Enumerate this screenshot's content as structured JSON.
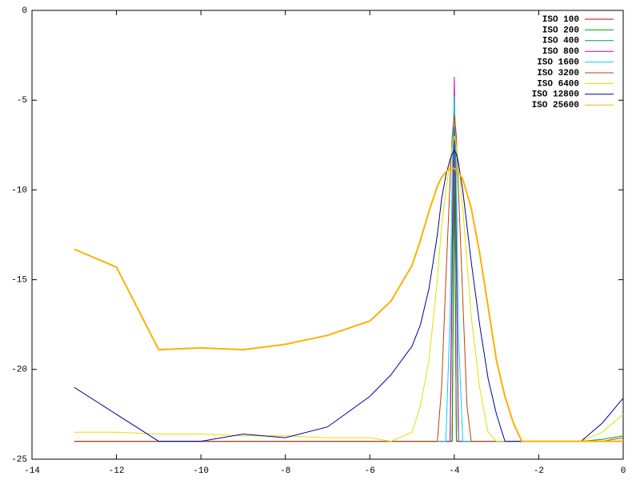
{
  "chart_data": {
    "type": "line",
    "x": [
      -13,
      -12,
      -11,
      -10,
      -9,
      -8,
      -7,
      -6,
      -5.5,
      -5,
      -4.8,
      -4.6,
      -4.4,
      -4.3,
      -4.2,
      -4.1,
      -4.05,
      -4,
      -3.95,
      -3.9,
      -3.8,
      -3.7,
      -3.6,
      -3.4,
      -3.2,
      -3,
      -2.8,
      -2.6,
      -2.4,
      -2,
      -1.5,
      -1,
      -0.5,
      0
    ],
    "xlim": [
      -14,
      0
    ],
    "ylim": [
      -25,
      0
    ],
    "xticks": [
      -14,
      -12,
      -10,
      -8,
      -6,
      -4,
      -2,
      0
    ],
    "yticks": [
      -25,
      -20,
      -15,
      -10,
      -5,
      0
    ],
    "legend": "top-right",
    "series": [
      {
        "name": "ISO 100",
        "color": "#cc0000",
        "values": [
          -24,
          -24,
          -24,
          -24,
          -24,
          -24,
          -24,
          -24,
          -24,
          -24,
          -24,
          -24,
          -24,
          -24,
          -24,
          -24,
          -24,
          -8.5,
          -24,
          -24,
          -24,
          -24,
          -24,
          -24,
          -24,
          -24,
          -24,
          -24,
          -24,
          -24,
          -24,
          -24,
          -24,
          -24
        ]
      },
      {
        "name": "ISO 200",
        "color": "#00a000",
        "values": [
          -24,
          -24,
          -24,
          -24,
          -24,
          -24,
          -24,
          -24,
          -24,
          -24,
          -24,
          -24,
          -24,
          -24,
          -24,
          -24,
          -24,
          -7,
          -24,
          -24,
          -24,
          -24,
          -24,
          -24,
          -24,
          -24,
          -24,
          -24,
          -24,
          -24,
          -24,
          -24,
          -23.9,
          -23.7
        ]
      },
      {
        "name": "ISO 400",
        "color": "#009080",
        "values": [
          -24,
          -24,
          -24,
          -24,
          -24,
          -24,
          -24,
          -24,
          -24,
          -24,
          -24,
          -24,
          -24,
          -24,
          -24,
          -24,
          -15,
          -6.5,
          -15,
          -24,
          -24,
          -24,
          -24,
          -24,
          -24,
          -24,
          -24,
          -24,
          -24,
          -24,
          -24,
          -24,
          -24,
          -24
        ]
      },
      {
        "name": "ISO 800",
        "color": "#c000c0",
        "values": [
          -24,
          -24,
          -24,
          -24,
          -24,
          -24,
          -24,
          -24,
          -24,
          -24,
          -24,
          -24,
          -24,
          -24,
          -24,
          -24,
          -13,
          -3.7,
          -13,
          -24,
          -24,
          -24,
          -24,
          -24,
          -24,
          -24,
          -24,
          -24,
          -24,
          -24,
          -24,
          -24,
          -24,
          -24
        ]
      },
      {
        "name": "ISO 1600",
        "color": "#00d8d8",
        "values": [
          -24,
          -24,
          -24,
          -24,
          -24,
          -24,
          -24,
          -24,
          -24,
          -24,
          -24,
          -24,
          -24,
          -24,
          -24,
          -17,
          -9,
          -4.8,
          -9,
          -18,
          -24,
          -24,
          -24,
          -24,
          -24,
          -24,
          -24,
          -24,
          -24,
          -24,
          -24,
          -24,
          -24,
          -24
        ]
      },
      {
        "name": "ISO 3200",
        "color": "#c04000",
        "values": [
          -24,
          -24,
          -24,
          -24,
          -24,
          -24,
          -24,
          -24,
          -24,
          -24,
          -24,
          -24,
          -24,
          -21,
          -15,
          -9.5,
          -7,
          -5.8,
          -7,
          -10,
          -16,
          -22,
          -24,
          -24,
          -24,
          -24,
          -24,
          -24,
          -24,
          -24,
          -24,
          -24,
          -24,
          -23.8
        ]
      },
      {
        "name": "ISO 6400",
        "color": "#e0e000",
        "values": [
          -23.5,
          -23.5,
          -23.6,
          -23.6,
          -23.7,
          -23.7,
          -23.8,
          -23.8,
          -24,
          -23.5,
          -22,
          -19.5,
          -15,
          -12,
          -10,
          -8.5,
          -7.5,
          -7,
          -7.5,
          -8.5,
          -11,
          -14,
          -17,
          -21,
          -23.5,
          -24,
          -24,
          -24,
          -24,
          -24,
          -24,
          -24,
          -23.5,
          -22.5
        ]
      },
      {
        "name": "ISO 12800",
        "color": "#0000a0",
        "values": [
          -21,
          -22.5,
          -24,
          -24,
          -23.6,
          -23.8,
          -23.2,
          -21.5,
          -20.3,
          -18.7,
          -17.5,
          -15.5,
          -12.5,
          -10.5,
          -9.2,
          -8.3,
          -8,
          -7.8,
          -8,
          -8.5,
          -10,
          -12,
          -14,
          -17.5,
          -20.5,
          -22.5,
          -24,
          -24,
          -24,
          -24,
          -24,
          -24,
          -23,
          -21.6
        ]
      },
      {
        "name": "ISO 25600",
        "color": "#ffb000",
        "values": [
          -13.3,
          -14.3,
          -18.9,
          -18.8,
          -18.9,
          -18.6,
          -18.1,
          -17.3,
          -16.2,
          -14.2,
          -12.8,
          -11.2,
          -9.8,
          -9.3,
          -9,
          -8.8,
          -8.8,
          -8.8,
          -8.9,
          -9,
          -9.4,
          -10.2,
          -11,
          -13.5,
          -16.5,
          -19.5,
          -21.5,
          -23,
          -24,
          -24,
          -24,
          -24,
          -24,
          -24
        ]
      }
    ]
  }
}
